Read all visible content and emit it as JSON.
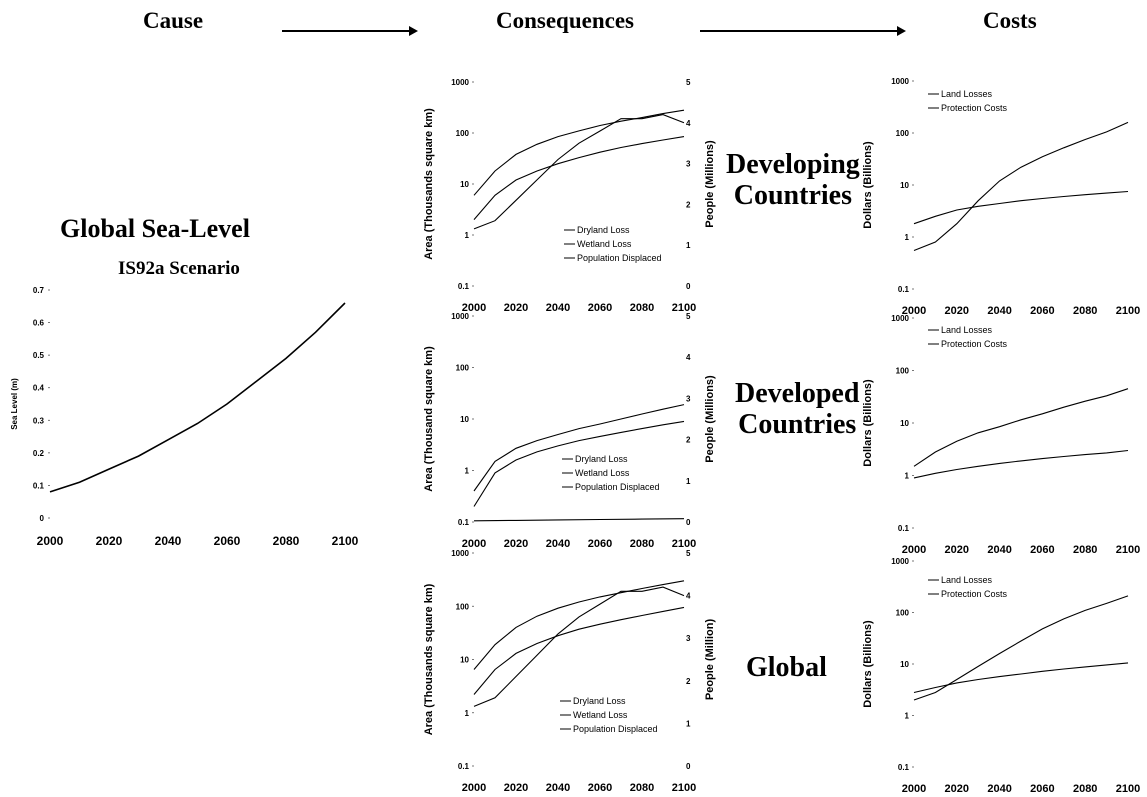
{
  "headers": {
    "cause": "Cause",
    "consequences": "Consequences",
    "costs": "Costs"
  },
  "sealevel": {
    "title": "Global Sea-Level",
    "subtitle": "IS92a Scenario"
  },
  "regions": {
    "developing_line1": "Developing",
    "developing_line2": "Countries",
    "developed_line1": "Developed",
    "developed_line2": "Countries",
    "global": "Global"
  },
  "chart_data": [
    {
      "id": "sealevel",
      "type": "line",
      "ylabel": "Sea Level (m)",
      "xlabel": "",
      "xlim": [
        2000,
        2100
      ],
      "ylim": [
        0,
        0.7
      ],
      "xticks": [
        "2000",
        "2020",
        "2040",
        "2060",
        "2080",
        "2100"
      ],
      "yticks": [
        "0",
        "0.1",
        "0.2",
        "0.3",
        "0.4",
        "0.5",
        "0.6",
        "0.7"
      ],
      "series": [
        {
          "x": [
            2000,
            2010,
            2020,
            2030,
            2040,
            2050,
            2060,
            2070,
            2080,
            2090,
            2100
          ],
          "values": [
            0.08,
            0.11,
            0.15,
            0.19,
            0.24,
            0.29,
            0.35,
            0.42,
            0.49,
            0.57,
            0.66
          ]
        }
      ]
    },
    {
      "id": "dev-cons",
      "type": "line",
      "ylabel": "Area (Thousands square km)",
      "y2label": "People (Millions)",
      "xlim": [
        2000,
        2100
      ],
      "ylim": [
        0.1,
        1000
      ],
      "ylog": true,
      "y2lim": [
        0,
        5
      ],
      "xticks": [
        "2000",
        "2020",
        "2040",
        "2060",
        "2080",
        "2100"
      ],
      "yticks": [
        "0.1",
        "1",
        "10",
        "100",
        "1000"
      ],
      "y2ticks": [
        "0",
        "1",
        "2",
        "3",
        "4",
        "5"
      ],
      "legend": [
        "Dryland Loss",
        "Wetland Loss",
        "Population Displaced"
      ],
      "series": [
        {
          "name": "Dryland Loss",
          "axis": "y",
          "x": [
            2000,
            2010,
            2020,
            2030,
            2040,
            2050,
            2060,
            2070,
            2080,
            2090,
            2100
          ],
          "values": [
            2,
            6,
            12,
            18,
            25,
            33,
            42,
            52,
            62,
            73,
            85
          ]
        },
        {
          "name": "Wetland Loss",
          "axis": "y",
          "x": [
            2000,
            2010,
            2020,
            2030,
            2040,
            2050,
            2060,
            2070,
            2080,
            2090,
            2100
          ],
          "values": [
            6,
            18,
            38,
            60,
            85,
            110,
            140,
            170,
            200,
            240,
            280
          ]
        },
        {
          "name": "Population Displaced",
          "axis": "y2",
          "x": [
            2000,
            2010,
            2020,
            2030,
            2040,
            2050,
            2060,
            2070,
            2080,
            2090,
            2100
          ],
          "values": [
            1.4,
            1.6,
            2.1,
            2.6,
            3.1,
            3.5,
            3.8,
            4.1,
            4.1,
            4.2,
            4.0
          ]
        }
      ]
    },
    {
      "id": "dvd-cons",
      "type": "line",
      "ylabel": "Area (Thousand square km)",
      "y2label": "People (Millions)",
      "xlim": [
        2000,
        2100
      ],
      "ylim": [
        0.1,
        1000
      ],
      "ylog": true,
      "y2lim": [
        0,
        5
      ],
      "xticks": [
        "2000",
        "2020",
        "2040",
        "2060",
        "2080",
        "2100"
      ],
      "yticks": [
        "0.1",
        "1",
        "10",
        "100",
        "1000"
      ],
      "y2ticks": [
        "0",
        "1",
        "2",
        "3",
        "4",
        "5"
      ],
      "legend": [
        "Dryland Loss",
        "Wetland Loss",
        "Population Displaced"
      ],
      "series": [
        {
          "name": "Dryland Loss",
          "axis": "y",
          "x": [
            2000,
            2010,
            2020,
            2030,
            2040,
            2050,
            2060,
            2070,
            2080,
            2090,
            2100
          ],
          "values": [
            0.2,
            0.9,
            1.6,
            2.3,
            3.0,
            3.8,
            4.6,
            5.5,
            6.5,
            7.7,
            9
          ]
        },
        {
          "name": "Wetland Loss",
          "axis": "y",
          "x": [
            2000,
            2010,
            2020,
            2030,
            2040,
            2050,
            2060,
            2070,
            2080,
            2090,
            2100
          ],
          "values": [
            0.4,
            1.5,
            2.7,
            3.8,
            5.0,
            6.5,
            8,
            10,
            12.5,
            15.5,
            19
          ]
        },
        {
          "name": "Population Displaced",
          "axis": "y2",
          "x": [
            2000,
            2020,
            2040,
            2060,
            2080,
            2100
          ],
          "values": [
            0.03,
            0.04,
            0.05,
            0.06,
            0.07,
            0.08
          ]
        }
      ]
    },
    {
      "id": "glb-cons",
      "type": "line",
      "ylabel": "Area (Thousands square km)",
      "y2label": "People (Million)",
      "xlim": [
        2000,
        2100
      ],
      "ylim": [
        0.1,
        1000
      ],
      "ylog": true,
      "y2lim": [
        0,
        5
      ],
      "xticks": [
        "2000",
        "2020",
        "2040",
        "2060",
        "2080",
        "2100"
      ],
      "yticks": [
        "0.1",
        "1",
        "10",
        "100",
        "1000"
      ],
      "y2ticks": [
        "0",
        "1",
        "2",
        "3",
        "4",
        "5"
      ],
      "legend": [
        "Dryland Loss",
        "Wetland Loss",
        "Population Displaced"
      ],
      "series": [
        {
          "name": "Dryland Loss",
          "axis": "y",
          "x": [
            2000,
            2010,
            2020,
            2030,
            2040,
            2050,
            2060,
            2070,
            2080,
            2090,
            2100
          ],
          "values": [
            2.2,
            6.5,
            13,
            20,
            28,
            37,
            46,
            56,
            67,
            80,
            95
          ]
        },
        {
          "name": "Wetland Loss",
          "axis": "y",
          "x": [
            2000,
            2010,
            2020,
            2030,
            2040,
            2050,
            2060,
            2070,
            2080,
            2090,
            2100
          ],
          "values": [
            6.5,
            19,
            40,
            65,
            92,
            120,
            150,
            180,
            215,
            255,
            300
          ]
        },
        {
          "name": "Population Displaced",
          "axis": "y2",
          "x": [
            2000,
            2010,
            2020,
            2030,
            2040,
            2050,
            2060,
            2070,
            2080,
            2090,
            2100
          ],
          "values": [
            1.4,
            1.6,
            2.1,
            2.6,
            3.1,
            3.5,
            3.8,
            4.1,
            4.1,
            4.2,
            4.0
          ]
        }
      ]
    },
    {
      "id": "dev-cost",
      "type": "line",
      "ylabel": "Dollars (Billions)",
      "xlim": [
        2000,
        2100
      ],
      "ylim": [
        0.1,
        1000
      ],
      "ylog": true,
      "xticks": [
        "2000",
        "2020",
        "2040",
        "2060",
        "2080",
        "2100"
      ],
      "yticks": [
        "0.1",
        "1",
        "10",
        "100",
        "1000"
      ],
      "legend": [
        "Land Losses",
        "Protection Costs"
      ],
      "series": [
        {
          "name": "Land Losses",
          "x": [
            2000,
            2010,
            2020,
            2030,
            2040,
            2050,
            2060,
            2070,
            2080,
            2090,
            2100
          ],
          "values": [
            1.8,
            2.5,
            3.3,
            3.9,
            4.4,
            5.0,
            5.5,
            6.0,
            6.5,
            7.0,
            7.5
          ]
        },
        {
          "name": "Protection Costs",
          "x": [
            2000,
            2010,
            2020,
            2030,
            2040,
            2050,
            2060,
            2070,
            2080,
            2090,
            2100
          ],
          "values": [
            0.55,
            0.8,
            1.8,
            5,
            12,
            22,
            35,
            52,
            75,
            105,
            160
          ]
        }
      ]
    },
    {
      "id": "dvd-cost",
      "type": "line",
      "ylabel": "Dollars (Billions)",
      "xlim": [
        2000,
        2100
      ],
      "ylim": [
        0.1,
        1000
      ],
      "ylog": true,
      "xticks": [
        "2000",
        "2020",
        "2040",
        "2060",
        "2080",
        "2100"
      ],
      "yticks": [
        "0.1",
        "1",
        "10",
        "100",
        "1000"
      ],
      "legend": [
        "Land Losses",
        "Protection Costs"
      ],
      "series": [
        {
          "name": "Land Losses",
          "x": [
            2000,
            2010,
            2020,
            2030,
            2040,
            2050,
            2060,
            2070,
            2080,
            2090,
            2100
          ],
          "values": [
            1.5,
            2.8,
            4.5,
            6.5,
            8.5,
            11.5,
            15,
            20,
            26,
            33,
            45
          ]
        },
        {
          "name": "Protection Costs",
          "x": [
            2000,
            2010,
            2020,
            2030,
            2040,
            2050,
            2060,
            2070,
            2080,
            2090,
            2100
          ],
          "values": [
            0.9,
            1.1,
            1.3,
            1.5,
            1.7,
            1.9,
            2.1,
            2.3,
            2.5,
            2.7,
            3.0
          ]
        }
      ]
    },
    {
      "id": "glb-cost",
      "type": "line",
      "ylabel": "Dollars (Billions)",
      "xlim": [
        2000,
        2100
      ],
      "ylim": [
        0.1,
        1000
      ],
      "ylog": true,
      "xticks": [
        "2000",
        "2020",
        "2040",
        "2060",
        "2080",
        "2100"
      ],
      "yticks": [
        "0.1",
        "1",
        "10",
        "100",
        "1000"
      ],
      "legend": [
        "Land Losses",
        "Protection Costs"
      ],
      "series": [
        {
          "name": "Land Losses",
          "x": [
            2000,
            2010,
            2020,
            2030,
            2040,
            2050,
            2060,
            2070,
            2080,
            2090,
            2100
          ],
          "values": [
            2.8,
            3.5,
            4.3,
            5,
            5.7,
            6.4,
            7.2,
            8,
            8.8,
            9.6,
            10.5
          ]
        },
        {
          "name": "Protection Costs",
          "x": [
            2000,
            2010,
            2020,
            2030,
            2040,
            2050,
            2060,
            2070,
            2080,
            2090,
            2100
          ],
          "values": [
            2.0,
            2.8,
            5,
            9,
            16,
            28,
            48,
            75,
            110,
            150,
            210
          ]
        }
      ]
    }
  ]
}
